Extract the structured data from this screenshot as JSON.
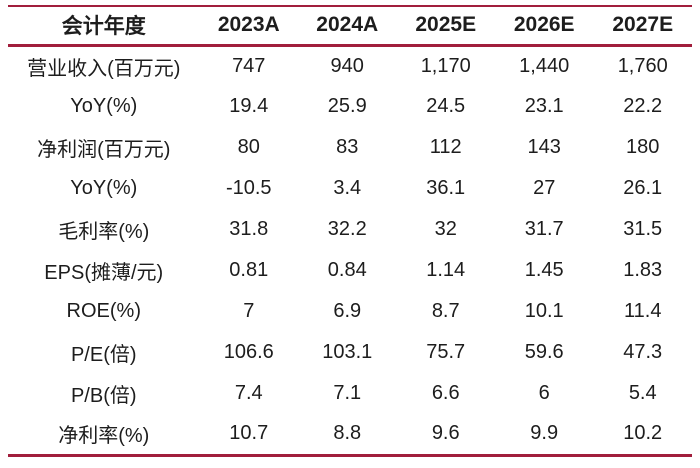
{
  "chart_data": {
    "type": "table",
    "title": "",
    "header": [
      "会计年度",
      "2023A",
      "2024A",
      "2025E",
      "2026E",
      "2027E"
    ],
    "rows": [
      {
        "label": "营业收入(百万元)",
        "values": [
          "747",
          "940",
          "1,170",
          "1,440",
          "1,760"
        ]
      },
      {
        "label": "YoY(%)",
        "values": [
          "19.4",
          "25.9",
          "24.5",
          "23.1",
          "22.2"
        ]
      },
      {
        "label": "净利润(百万元)",
        "values": [
          "80",
          "83",
          "112",
          "143",
          "180"
        ]
      },
      {
        "label": "YoY(%)",
        "values": [
          "-10.5",
          "3.4",
          "36.1",
          "27",
          "26.1"
        ]
      },
      {
        "label": "毛利率(%)",
        "values": [
          "31.8",
          "32.2",
          "32",
          "31.7",
          "31.5"
        ]
      },
      {
        "label": "EPS(摊薄/元)",
        "values": [
          "0.81",
          "0.84",
          "1.14",
          "1.45",
          "1.83"
        ]
      },
      {
        "label": "ROE(%)",
        "values": [
          "7",
          "6.9",
          "8.7",
          "10.1",
          "11.4"
        ]
      },
      {
        "label": "P/E(倍)",
        "values": [
          "106.6",
          "103.1",
          "75.7",
          "59.6",
          "47.3"
        ]
      },
      {
        "label": "P/B(倍)",
        "values": [
          "7.4",
          "7.1",
          "6.6",
          "6",
          "5.4"
        ]
      },
      {
        "label": "净利率(%)",
        "values": [
          "10.7",
          "8.8",
          "9.6",
          "9.9",
          "10.2"
        ]
      }
    ],
    "layout": {
      "grid": "horizontal-rules-only",
      "alignment": "center"
    }
  },
  "colors": {
    "rule": "#A11E3C",
    "text": "#1d1d1d",
    "background": "#ffffff"
  }
}
